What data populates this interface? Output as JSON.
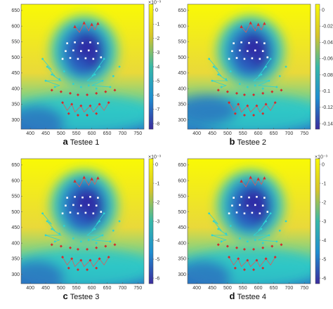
{
  "figure": {
    "panels": [
      {
        "letter": "a",
        "caption": "Testee 1",
        "colorbar_exponent": "×10⁻³",
        "colorbar_ticks": [
          "0",
          "-1",
          "-2",
          "-3",
          "-4",
          "-5",
          "-6",
          "-7",
          "-8"
        ],
        "field": "f1"
      },
      {
        "letter": "b",
        "caption": "Testee 2",
        "colorbar_exponent": "",
        "colorbar_ticks": [
          "0",
          "-0.02",
          "-0.04",
          "-0.06",
          "-0.08",
          "-0.1",
          "-0.12",
          "-0.14"
        ],
        "field": "f2"
      },
      {
        "letter": "c",
        "caption": "Testee 3",
        "colorbar_exponent": "×10⁻³",
        "colorbar_ticks": [
          "0",
          "-1",
          "-2",
          "-3",
          "-4",
          "-5",
          "-6"
        ],
        "field": "f3"
      },
      {
        "letter": "d",
        "caption": "Testee 4",
        "colorbar_exponent": "×10⁻³",
        "colorbar_ticks": [
          "0",
          "-1",
          "-2",
          "-3",
          "-4",
          "-5",
          "-6"
        ],
        "field": "f4"
      }
    ],
    "x_ticks": [
      "400",
      "450",
      "500",
      "550",
      "600",
      "650",
      "700",
      "750"
    ],
    "y_ticks": [
      "300",
      "350",
      "400",
      "450",
      "500",
      "550",
      "600",
      "650"
    ],
    "colors": {
      "yellow": "#f9f905",
      "cyan": "#2fc7c6",
      "navy": "#2f2aa6",
      "red_marker": "#d22d2d",
      "cyan_marker": "#2fd3d3",
      "white_marker": "#ffffff"
    }
  }
}
